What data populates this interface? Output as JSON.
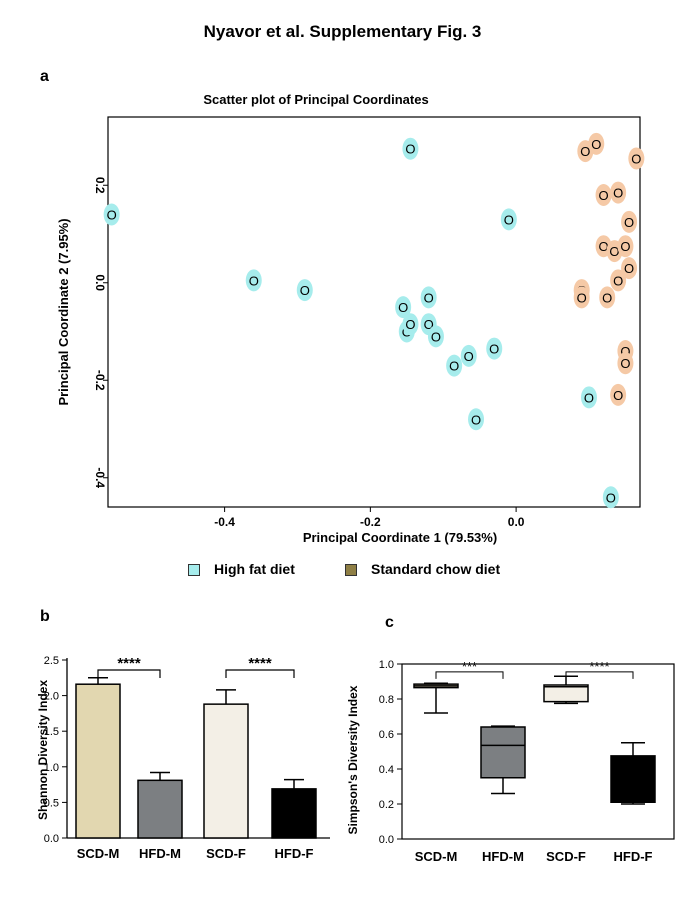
{
  "page_title": "Nyavor et al.  Supplementary Fig. 3",
  "panels": {
    "a": "a",
    "b": "b",
    "c": "c"
  },
  "colors": {
    "hfd_point": "#a6ecec",
    "scd_point": "#f5c9a6",
    "legend_hfd": "#a6ecec",
    "legend_scd": "#8f7f45",
    "scd_m_box": "#e2d7b0",
    "hfd_m_box": "#7c7f82",
    "scd_f_box": "#f3efe6",
    "hfd_f_box": "#000000"
  },
  "legend": {
    "hfd_label": "High fat diet",
    "scd_label": "Standard chow diet"
  },
  "chart_data": [
    {
      "type": "scatter",
      "title": "Scatter plot of Principal Coordinates",
      "xlabel": "Principal Coordinate 1 (79.53%)",
      "ylabel": "Principal Coordinate 2 (7.95%)",
      "xlim": [
        -0.56,
        0.17
      ],
      "ylim": [
        -0.46,
        0.34
      ],
      "xticks": [
        -0.4,
        -0.2,
        0.0
      ],
      "xtick_labels": [
        "-0.4",
        "-0.2",
        "0.0"
      ],
      "yticks": [
        -0.4,
        -0.2,
        0.0,
        0.2
      ],
      "ytick_labels": [
        "-0.4",
        "-0.2",
        "0.0",
        "0.2"
      ],
      "marker_label": "O",
      "series": [
        {
          "name": "High fat diet",
          "points": [
            [
              -0.555,
              0.14
            ],
            [
              -0.36,
              0.005
            ],
            [
              -0.29,
              -0.015
            ],
            [
              -0.145,
              0.275
            ],
            [
              -0.155,
              -0.05
            ],
            [
              -0.15,
              -0.1
            ],
            [
              -0.145,
              -0.085
            ],
            [
              -0.12,
              -0.03
            ],
            [
              -0.12,
              -0.085
            ],
            [
              -0.11,
              -0.11
            ],
            [
              -0.085,
              -0.17
            ],
            [
              -0.065,
              -0.15
            ],
            [
              -0.055,
              -0.28
            ],
            [
              -0.03,
              -0.135
            ],
            [
              -0.01,
              0.13
            ],
            [
              0.1,
              -0.235
            ],
            [
              0.13,
              -0.44
            ]
          ]
        },
        {
          "name": "Standard chow diet",
          "points": [
            [
              0.095,
              0.27
            ],
            [
              0.11,
              0.285
            ],
            [
              0.165,
              0.255
            ],
            [
              0.12,
              0.18
            ],
            [
              0.14,
              0.185
            ],
            [
              0.155,
              0.125
            ],
            [
              0.12,
              0.075
            ],
            [
              0.135,
              0.065
            ],
            [
              0.15,
              0.075
            ],
            [
              0.155,
              0.03
            ],
            [
              0.14,
              0.005
            ],
            [
              0.09,
              -0.015
            ],
            [
              0.09,
              -0.03
            ],
            [
              0.125,
              -0.03
            ],
            [
              0.15,
              -0.14
            ],
            [
              0.15,
              -0.165
            ],
            [
              0.14,
              -0.23
            ]
          ]
        }
      ]
    },
    {
      "type": "bar",
      "ylabel": "Shannon Diversity Index",
      "categories": [
        "SCD-M",
        "HFD-M",
        "SCD-F",
        "HFD-F"
      ],
      "values": [
        2.16,
        0.81,
        1.88,
        0.69
      ],
      "error": [
        0.09,
        0.11,
        0.2,
        0.13
      ],
      "ylim": [
        0,
        2.5
      ],
      "yticks": [
        0,
        0.5,
        1,
        1.5,
        2,
        2.5
      ],
      "ytick_labels": [
        "0.0",
        "0.5",
        "1.0",
        "1.5",
        "2.0",
        "2.5"
      ],
      "significance": [
        {
          "from": 0,
          "to": 1,
          "label": "****"
        },
        {
          "from": 2,
          "to": 3,
          "label": "****"
        }
      ]
    },
    {
      "type": "box",
      "ylabel": "Simpson's Diversity Index",
      "categories": [
        "SCD-M",
        "HFD-M",
        "SCD-F",
        "HFD-F"
      ],
      "boxes": [
        {
          "min": 0.72,
          "q1": 0.865,
          "median": 0.875,
          "q3": 0.885,
          "max": 0.89
        },
        {
          "min": 0.26,
          "q1": 0.35,
          "median": 0.535,
          "q3": 0.64,
          "max": 0.645
        },
        {
          "min": 0.775,
          "q1": 0.785,
          "median": 0.87,
          "q3": 0.88,
          "max": 0.93
        },
        {
          "min": 0.2,
          "q1": 0.21,
          "median": 0.465,
          "q3": 0.475,
          "max": 0.55
        }
      ],
      "ylim": [
        0,
        1.0
      ],
      "yticks": [
        0,
        0.2,
        0.4,
        0.6,
        0.8,
        1.0
      ],
      "ytick_labels": [
        "0.0",
        "0.2",
        "0.4",
        "0.6",
        "0.8",
        "1.0"
      ],
      "significance": [
        {
          "from": 0,
          "to": 1,
          "label": "***"
        },
        {
          "from": 2,
          "to": 3,
          "label": "****"
        }
      ]
    }
  ]
}
